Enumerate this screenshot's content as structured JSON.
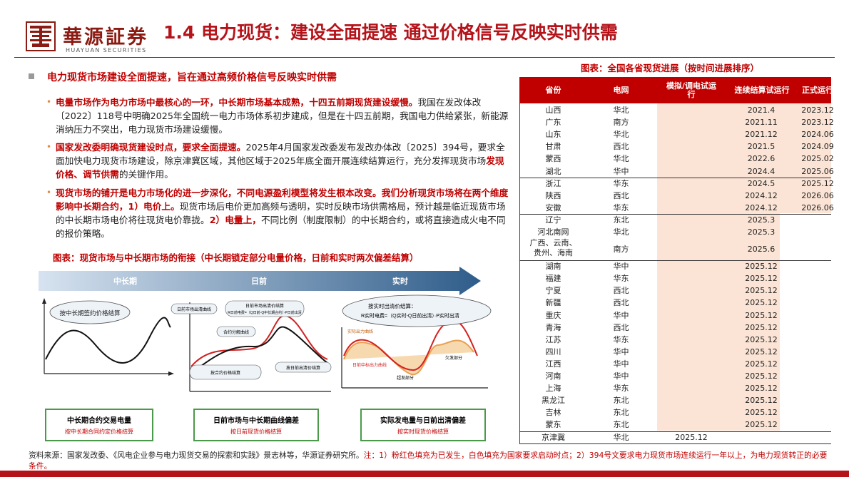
{
  "header": {
    "logo_cn": "華源証券",
    "logo_en": "HUAYUAN SECURITIES",
    "title": "1.4 电力现货：建设全面提速 通过价格信号反映实时供需"
  },
  "summary": "电力现货市场建设全面提速，旨在通过高频价格信号反映实时供需",
  "bullets": [
    {
      "lead": "电量市场作为电力市场中最核心的一环，中长期市场基本成熟，十四五前期现货建设缓慢。",
      "body": "我国在发改体改〔2022〕118号中明确2025年全国统一电力市场体系初步建成，但是在十四五前期，我国电力供给紧张，新能源消纳压力不突出，电力现货市场建设缓慢。"
    },
    {
      "lead": "国家发改委明确现货建设时点，要求全面提速。",
      "body": "2025年4月国家发改委发布发改办体改〔2025〕394号，要求全面加快电力现货市场建设，除京津冀区域，其他区域于2025年底全面开展连续结算运行，充分发挥现货市场",
      "highlight": "发现价格、调节供需",
      "tail": "的关键作用。"
    },
    {
      "lead": "现货市场的铺开是电力市场化的进一步深化，不同电源盈利模型将发生根本改变。我们分析现货市场将在两个维度影响中长期合约，1）电价上。",
      "body": "现货市场后电价更加高频与透明，实时反映市场供需格局，预计越是临近现货市场的中长期市场电价将往现货电价靠拢。",
      "lead2": "2）电量上，",
      "tail": "不同比例（制度限制）的中长期合约，或将直接造成火电不同的报价策略。"
    }
  ],
  "left_figure": {
    "caption": "图表：现货市场与中长期市场的衔接（中长期锁定部分电量价格，日前和实时两次偏差结算）",
    "arrow_labels": [
      "中长期",
      "日前",
      "实时"
    ],
    "panel1_bubble": "按中长期签约价格结算",
    "panel2_labels": [
      "日前市场出清曲线",
      "日前市场出清价结算",
      "合约分解曲线",
      "按合约价格结算",
      "按日前出清价结算"
    ],
    "panel2_formula": "R日前电费=（Q日前-Q中长期合约）·P日前出清",
    "panel3_bubble": "按实时出清价结算：",
    "panel3_formula": "R实时电费=（Q实时-Q日前出清）·P实时出清",
    "panel3_labels": [
      "实际出力曲线",
      "日前中标出力曲线",
      "欠发部分",
      "超发部分"
    ],
    "boxes": [
      {
        "title": "中长期合约交易电量",
        "sub": "按中长期合同约定价格结算"
      },
      {
        "title": "日前市场与中长期曲线偏差",
        "sub": "按日前现货价格结算"
      },
      {
        "title": "实际发电量与日前出清偏差",
        "sub": "按实时现货价格结算"
      }
    ]
  },
  "table": {
    "caption": "图表：全国各省现货进展（按时间进展排序）",
    "headers": [
      "省份",
      "电网",
      "模拟/调电试运行",
      "连续结算试运行",
      "正式运行"
    ],
    "rows": [
      [
        "山西",
        "华北",
        "",
        "2021.4",
        "2023.12"
      ],
      [
        "广东",
        "南方",
        "",
        "2021.11",
        "2023.12"
      ],
      [
        "山东",
        "华北",
        "",
        "2021.12",
        "2024.06"
      ],
      [
        "甘肃",
        "西北",
        "",
        "2021.5",
        "2024.09"
      ],
      [
        "蒙西",
        "华北",
        "",
        "2022.6",
        "2025.02"
      ],
      [
        "湖北",
        "华中",
        "",
        "2024.4",
        "2025.06"
      ],
      [
        "浙江",
        "华东",
        "",
        "2024.5",
        "2025.12"
      ],
      [
        "陕西",
        "西北",
        "",
        "2024.12",
        "2026.06"
      ],
      [
        "安徽",
        "华东",
        "",
        "2024.12",
        "2026.06"
      ],
      [
        "辽宁",
        "东北",
        "",
        "2025.3",
        ""
      ],
      [
        "河北南网",
        "华北",
        "",
        "2025.3",
        ""
      ],
      [
        "广西、云南、贵州、海南",
        "南方",
        "",
        "2025.6",
        ""
      ],
      [
        "湖南",
        "华中",
        "",
        "2025.12",
        ""
      ],
      [
        "福建",
        "华东",
        "",
        "2025.12",
        ""
      ],
      [
        "宁夏",
        "西北",
        "",
        "2025.12",
        ""
      ],
      [
        "新疆",
        "西北",
        "",
        "2025.12",
        ""
      ],
      [
        "重庆",
        "华中",
        "",
        "2025.12",
        ""
      ],
      [
        "青海",
        "西北",
        "",
        "2025.12",
        ""
      ],
      [
        "江苏",
        "华东",
        "",
        "2025.12",
        ""
      ],
      [
        "四川",
        "华中",
        "",
        "2025.12",
        ""
      ],
      [
        "江西",
        "华中",
        "",
        "2025.12",
        ""
      ],
      [
        "河南",
        "华中",
        "",
        "2025.12",
        ""
      ],
      [
        "上海",
        "华东",
        "",
        "2025.12",
        ""
      ],
      [
        "黑龙江",
        "东北",
        "",
        "2025.12",
        ""
      ],
      [
        "吉林",
        "东北",
        "",
        "2025.12",
        ""
      ],
      [
        "蒙东",
        "东北",
        "",
        "2025.12",
        ""
      ],
      [
        "京津冀",
        "华北",
        "2025.12",
        "",
        ""
      ]
    ]
  },
  "footer": {
    "source": "资料来源：国家发改委、《风电企业参与电力现货交易的探索和实践》景志林等，华源证券研究所。",
    "note": "注：1）粉红色填充为已发生，白色填充为国家要求启动时点；2）394号文要求电力现货市场连续运行一年以上，为电力现货转正的必要条件。"
  },
  "colors": {
    "brand_red": "#b5131a",
    "accent_red": "#c00000",
    "pink_fill": "#fbe4d5",
    "arrow_blue": "#2e5c8a"
  }
}
